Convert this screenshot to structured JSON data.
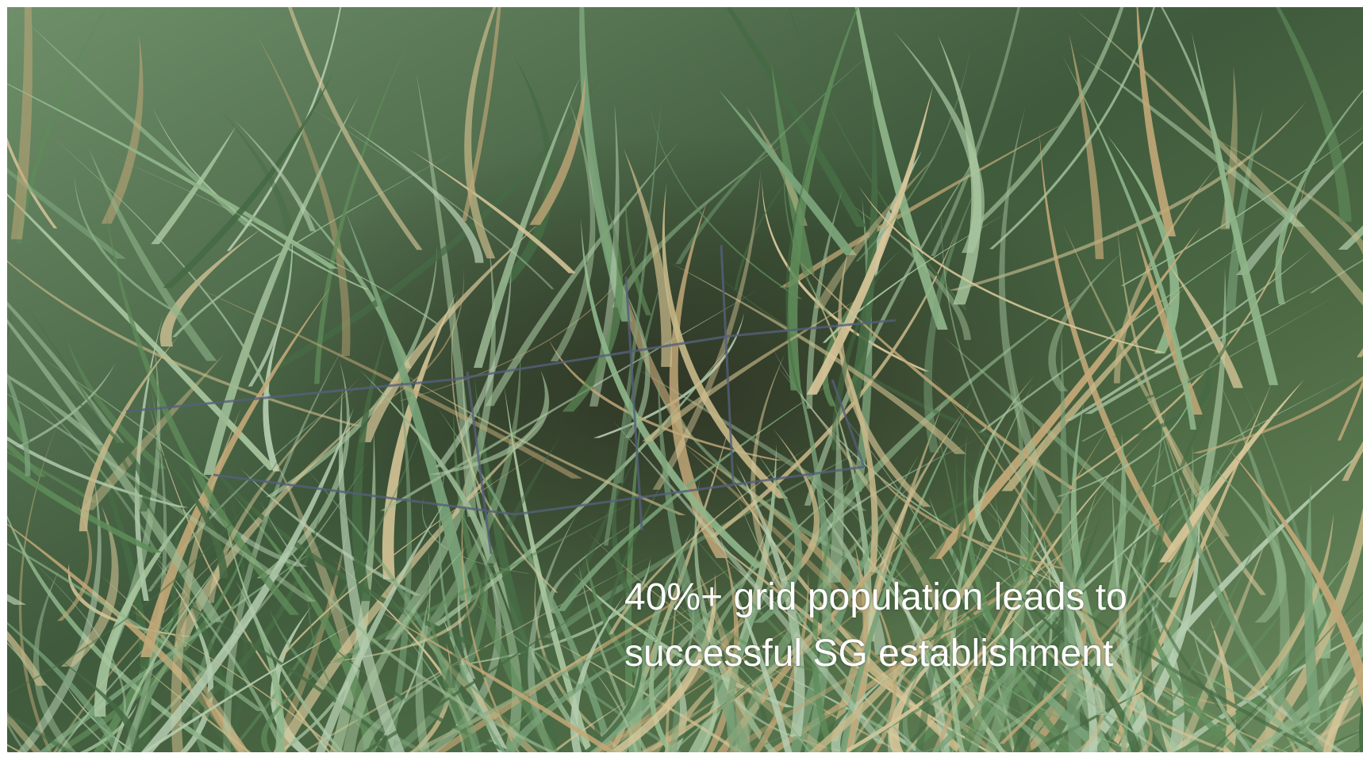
{
  "caption": {
    "lines": [
      "40%+ grid population leads to",
      "successful SG establishment"
    ]
  }
}
